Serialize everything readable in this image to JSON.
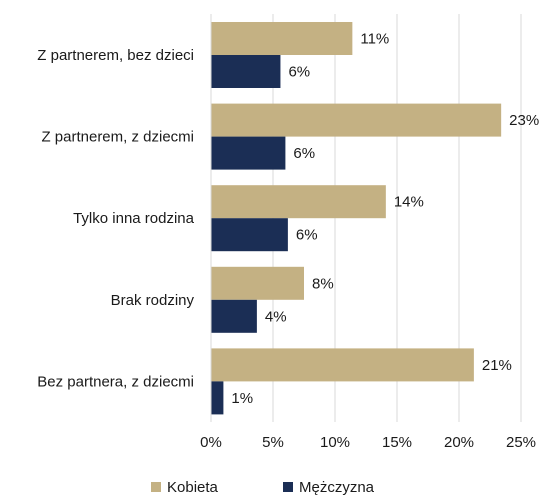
{
  "chart_data": {
    "type": "bar",
    "orientation": "horizontal",
    "categories": [
      "Z partnerem, bez dzieci",
      "Z partnerem, z dziecmi",
      "Tylko inna rodzina",
      "Brak rodziny",
      "Bez partnera, z dziecmi"
    ],
    "series": [
      {
        "name": "Kobieta",
        "color": "#c4b183",
        "values": [
          11.4,
          23.4,
          14.1,
          7.5,
          21.2
        ],
        "labels": [
          "11%",
          "23%",
          "14%",
          "8%",
          "21%"
        ]
      },
      {
        "name": "Mężczyzna",
        "color": "#1b2e55",
        "values": [
          5.6,
          6.0,
          6.2,
          3.7,
          1.0
        ],
        "labels": [
          "6%",
          "6%",
          "6%",
          "4%",
          "1%"
        ]
      }
    ],
    "xlim": [
      0,
      25
    ],
    "xticks": [
      0,
      5,
      10,
      15,
      20,
      25
    ],
    "xtick_labels": [
      "0%",
      "5%",
      "10%",
      "15%",
      "20%",
      "25%"
    ],
    "grid": "vertical",
    "legend": "bottom"
  }
}
